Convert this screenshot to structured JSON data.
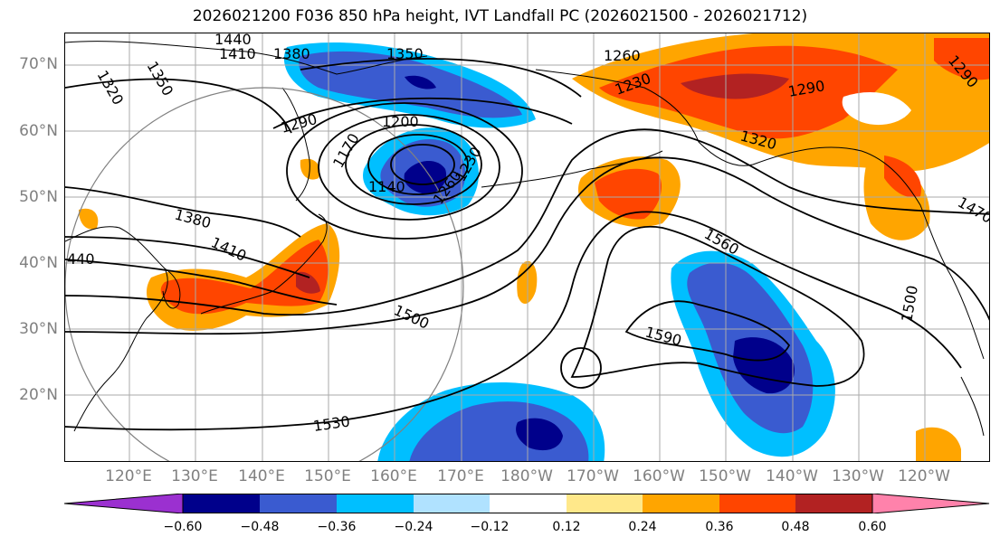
{
  "title": "2026021200 F036 850 hPa height, IVT Landfall PC (2026021500 - 2026021712)",
  "lat_labels": [
    "70°N",
    "60°N",
    "50°N",
    "40°N",
    "30°N",
    "20°N"
  ],
  "lon_labels": [
    "120°E",
    "130°E",
    "140°E",
    "150°E",
    "160°E",
    "170°E",
    "180°W",
    "170°W",
    "160°W",
    "150°W",
    "140°W",
    "130°W",
    "120°W"
  ],
  "colorbar": {
    "ticks": [
      "−0.60",
      "−0.48",
      "−0.36",
      "−0.24",
      "−0.12",
      "0.12",
      "0.24",
      "0.36",
      "0.48",
      "0.60"
    ],
    "colors": [
      "#9b30d0",
      "#00008b",
      "#3a5bd0",
      "#00bfff",
      "#b0e2ff",
      "#ffffff",
      "#ffe88a",
      "#ffa500",
      "#ff4500",
      "#b22222",
      "#ff82ab"
    ]
  },
  "contour_labels": [
    "1440",
    "1410",
    "1380",
    "1320",
    "1350",
    "1350",
    "1260",
    "1230",
    "1290",
    "1290",
    "1200",
    "1170",
    "1140",
    "1260",
    "1230",
    "1320",
    "1380",
    "1410",
    "440",
    "1560",
    "1500",
    "1590",
    "1530",
    "1470",
    "1500",
    "1290"
  ]
}
